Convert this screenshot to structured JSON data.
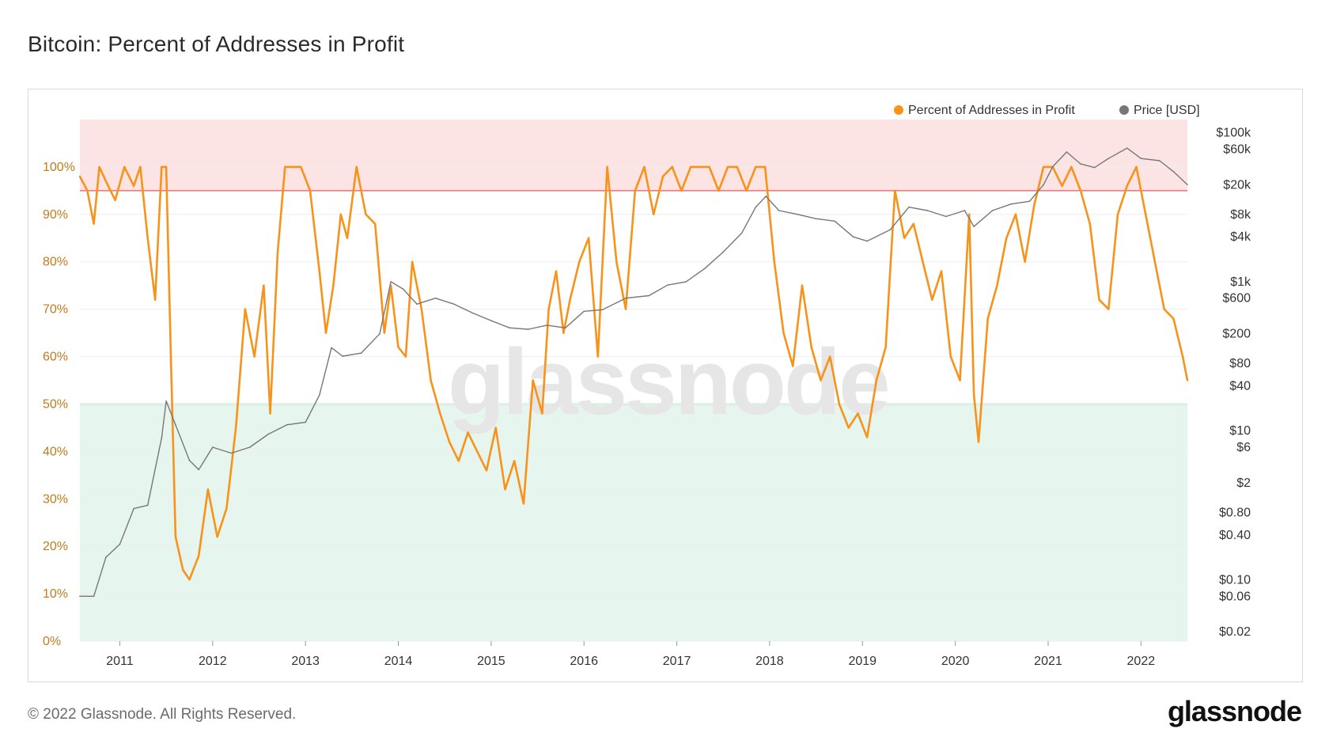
{
  "title": "Bitcoin: Percent of Addresses in Profit",
  "footer": {
    "copyright": "© 2022 Glassnode. All Rights Reserved.",
    "logo": "glassnode"
  },
  "watermark": "glassnode",
  "colors": {
    "profit_series": "#f7931a",
    "price_series": "#777777",
    "upper_band": "#fce4e4",
    "lower_band": "#e6f6ee",
    "upper_line": "#e57373",
    "lower_line": "#7fd3a8"
  },
  "chart_data": {
    "type": "line",
    "title": "Bitcoin: Percent of Addresses in Profit",
    "legend": {
      "placement": "top-right",
      "entries": [
        "Percent of Addresses in Profit",
        "Price [USD]"
      ]
    },
    "x_ticks": [
      "2011",
      "2012",
      "2013",
      "2014",
      "2015",
      "2016",
      "2017",
      "2018",
      "2019",
      "2020",
      "2021",
      "2022"
    ],
    "x_range": [
      2010.57,
      2022.5
    ],
    "y_left": {
      "ticks": [
        "0%",
        "10%",
        "20%",
        "30%",
        "40%",
        "50%",
        "60%",
        "70%",
        "80%",
        "90%",
        "100%"
      ],
      "ylim": [
        0,
        100
      ]
    },
    "y_right": {
      "scale": "log",
      "ticks": [
        "$0.02",
        "$0.06",
        "$0.10",
        "$0.40",
        "$0.80",
        "$2",
        "$6",
        "$10",
        "$40",
        "$80",
        "$200",
        "$600",
        "$1k",
        "$4k",
        "$8k",
        "$20k",
        "$60k",
        "$100k"
      ],
      "tick_values": [
        0.02,
        0.06,
        0.1,
        0.4,
        0.8,
        2,
        6,
        10,
        40,
        80,
        200,
        600,
        1000,
        4000,
        8000,
        20000,
        60000,
        100000
      ]
    },
    "bands": [
      {
        "name": "upper",
        "from": 95,
        "to": 110
      },
      {
        "name": "lower",
        "from": 0,
        "to": 50
      }
    ],
    "series": [
      {
        "name": "Percent of Addresses in Profit",
        "axis": "left",
        "x": [
          2010.57,
          2010.65,
          2010.72,
          2010.78,
          2010.85,
          2010.95,
          2011.05,
          2011.15,
          2011.22,
          2011.3,
          2011.38,
          2011.45,
          2011.5,
          2011.55,
          2011.6,
          2011.68,
          2011.75,
          2011.85,
          2011.95,
          2012.05,
          2012.15,
          2012.25,
          2012.35,
          2012.45,
          2012.55,
          2012.62,
          2012.7,
          2012.78,
          2012.85,
          2012.95,
          2013.05,
          2013.15,
          2013.22,
          2013.3,
          2013.38,
          2013.45,
          2013.55,
          2013.65,
          2013.75,
          2013.85,
          2013.92,
          2014.0,
          2014.08,
          2014.15,
          2014.25,
          2014.35,
          2014.45,
          2014.55,
          2014.65,
          2014.75,
          2014.85,
          2014.95,
          2015.05,
          2015.15,
          2015.25,
          2015.35,
          2015.45,
          2015.55,
          2015.62,
          2015.7,
          2015.78,
          2015.85,
          2015.95,
          2016.05,
          2016.15,
          2016.25,
          2016.35,
          2016.45,
          2016.55,
          2016.65,
          2016.75,
          2016.85,
          2016.95,
          2017.05,
          2017.15,
          2017.25,
          2017.35,
          2017.45,
          2017.55,
          2017.65,
          2017.75,
          2017.85,
          2017.95,
          2018.05,
          2018.15,
          2018.25,
          2018.35,
          2018.45,
          2018.55,
          2018.65,
          2018.75,
          2018.85,
          2018.95,
          2019.05,
          2019.15,
          2019.25,
          2019.35,
          2019.45,
          2019.55,
          2019.65,
          2019.75,
          2019.85,
          2019.95,
          2020.05,
          2020.15,
          2020.2,
          2020.25,
          2020.35,
          2020.45,
          2020.55,
          2020.65,
          2020.75,
          2020.85,
          2020.95,
          2021.05,
          2021.15,
          2021.25,
          2021.35,
          2021.45,
          2021.55,
          2021.65,
          2021.75,
          2021.85,
          2021.95,
          2022.05,
          2022.15,
          2022.25,
          2022.35,
          2022.45,
          2022.5
        ],
        "values": [
          98,
          95,
          88,
          100,
          97,
          93,
          100,
          96,
          100,
          85,
          72,
          100,
          100,
          60,
          22,
          15,
          13,
          18,
          32,
          22,
          28,
          45,
          70,
          60,
          75,
          48,
          82,
          100,
          100,
          100,
          95,
          78,
          65,
          75,
          90,
          85,
          100,
          90,
          88,
          65,
          75,
          62,
          60,
          80,
          70,
          55,
          48,
          42,
          38,
          44,
          40,
          36,
          45,
          32,
          38,
          29,
          55,
          48,
          70,
          78,
          65,
          72,
          80,
          85,
          60,
          100,
          80,
          70,
          95,
          100,
          90,
          98,
          100,
          95,
          100,
          100,
          100,
          95,
          100,
          100,
          95,
          100,
          100,
          80,
          65,
          58,
          75,
          62,
          55,
          60,
          50,
          45,
          48,
          43,
          55,
          62,
          95,
          85,
          88,
          80,
          72,
          78,
          60,
          55,
          90,
          52,
          42,
          68,
          75,
          85,
          90,
          80,
          92,
          100,
          100,
          96,
          100,
          95,
          88,
          72,
          70,
          90,
          96,
          100,
          90,
          80,
          70,
          68,
          60,
          55
        ],
        "color": "#f7931a"
      },
      {
        "name": "Price [USD]",
        "axis": "right",
        "x": [
          2010.57,
          2010.72,
          2010.85,
          2011.0,
          2011.15,
          2011.3,
          2011.45,
          2011.5,
          2011.6,
          2011.75,
          2011.85,
          2012.0,
          2012.2,
          2012.4,
          2012.6,
          2012.8,
          2013.0,
          2013.15,
          2013.28,
          2013.4,
          2013.6,
          2013.8,
          2013.92,
          2014.05,
          2014.2,
          2014.4,
          2014.6,
          2014.8,
          2015.0,
          2015.2,
          2015.4,
          2015.6,
          2015.8,
          2016.0,
          2016.2,
          2016.45,
          2016.7,
          2016.9,
          2017.1,
          2017.3,
          2017.5,
          2017.7,
          2017.85,
          2017.96,
          2018.1,
          2018.3,
          2018.5,
          2018.7,
          2018.9,
          2019.05,
          2019.3,
          2019.5,
          2019.7,
          2019.9,
          2020.1,
          2020.2,
          2020.4,
          2020.6,
          2020.8,
          2020.95,
          2021.05,
          2021.2,
          2021.35,
          2021.5,
          2021.65,
          2021.85,
          2022.0,
          2022.2,
          2022.35,
          2022.5
        ],
        "values": [
          0.06,
          0.06,
          0.2,
          0.3,
          0.9,
          1,
          8,
          25,
          12,
          4,
          3,
          6,
          5,
          6,
          9,
          12,
          13,
          30,
          130,
          100,
          110,
          200,
          1000,
          800,
          500,
          600,
          500,
          380,
          300,
          240,
          230,
          260,
          240,
          400,
          420,
          600,
          650,
          900,
          1000,
          1500,
          2500,
          4500,
          10000,
          14000,
          9000,
          8000,
          7000,
          6500,
          4000,
          3500,
          5000,
          10000,
          9000,
          7500,
          9000,
          5500,
          9000,
          11000,
          12000,
          20000,
          35000,
          55000,
          38000,
          34000,
          45000,
          62000,
          45000,
          42000,
          30000,
          20000
        ],
        "color": "#777777"
      }
    ],
    "grid": true
  }
}
